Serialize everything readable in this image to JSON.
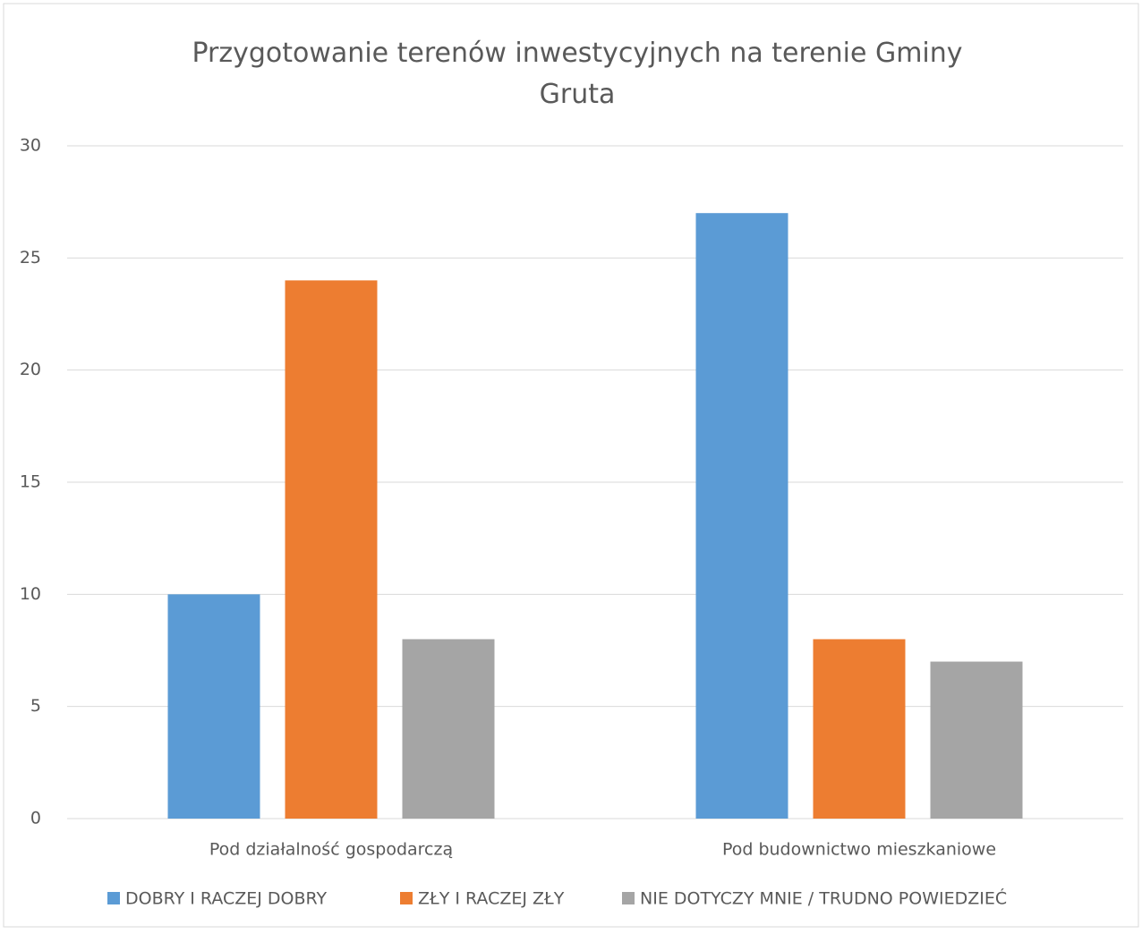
{
  "chart_data": {
    "type": "bar",
    "title": "Przygotowanie terenów inwestycyjnych na terenie Gminy Gruta",
    "categories": [
      "Pod działalność gospodarczą",
      "Pod budownictwo mieszkaniowe"
    ],
    "series": [
      {
        "name": "DOBRY I RACZEJ DOBRY",
        "color": "#5b9bd5",
        "values": [
          10,
          27
        ]
      },
      {
        "name": "ZŁY I RACZEJ ZŁY",
        "color": "#ed7d31",
        "values": [
          24,
          8
        ]
      },
      {
        "name": "NIE DOTYCZY MNIE / TRUDNO POWIEDZIEĆ",
        "color": "#a5a5a5",
        "values": [
          8,
          7
        ]
      }
    ],
    "ylim": [
      0,
      30
    ],
    "yticks": [
      0,
      5,
      10,
      15,
      20,
      25,
      30
    ],
    "grid": true,
    "legend": "bottom"
  }
}
